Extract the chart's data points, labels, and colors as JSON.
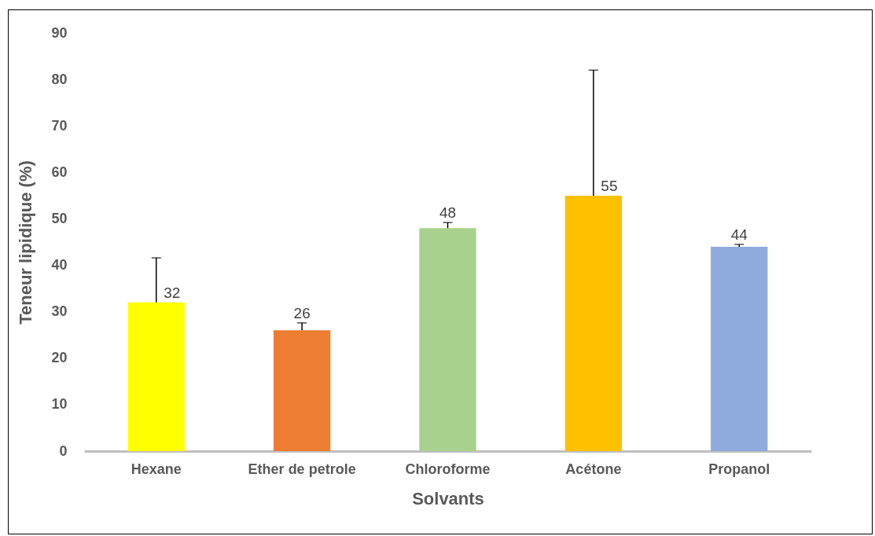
{
  "chart_data": {
    "type": "bar",
    "xlabel": "Solvants",
    "ylabel": "Teneur lipidique (%)",
    "categories": [
      "Hexane",
      "Ether de petrole",
      "Chloroforme",
      "Acétone",
      "Propanol"
    ],
    "values": [
      32,
      26,
      48,
      55,
      44
    ],
    "colors": [
      "#ffff00",
      "#ed7d31",
      "#a9d18e",
      "#ffc000",
      "#8faadc"
    ],
    "errors": [
      [
        32,
        41.6
      ],
      [
        26,
        27.6
      ],
      [
        48,
        49.2
      ],
      [
        55,
        82
      ],
      [
        44,
        44.5
      ]
    ],
    "ylim": [
      0,
      90
    ],
    "yticks": [
      0,
      10,
      20,
      30,
      40,
      50,
      60,
      70,
      80,
      90
    ],
    "data_labels": true,
    "grid": false
  }
}
